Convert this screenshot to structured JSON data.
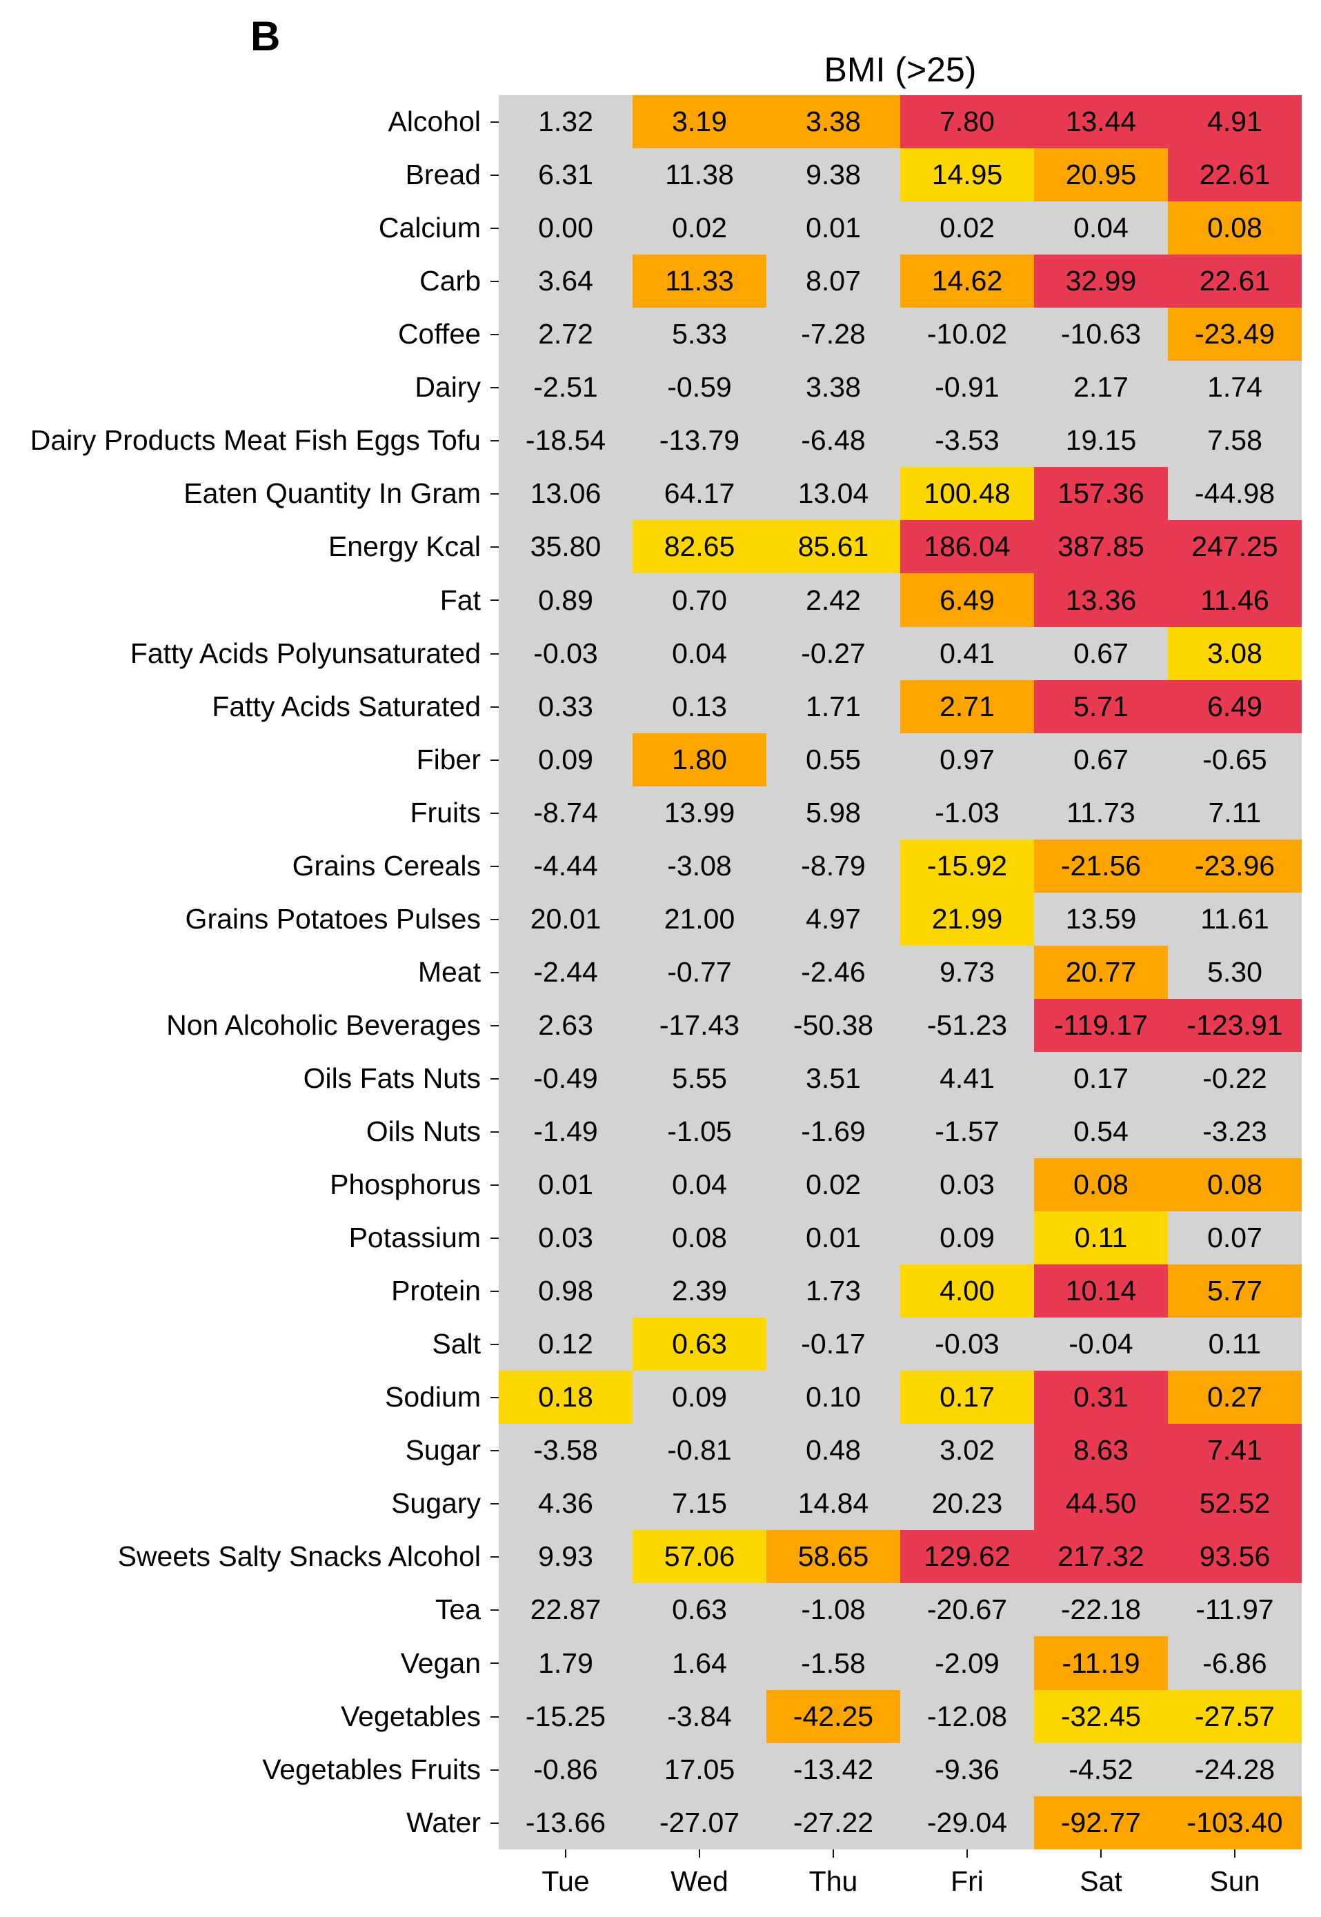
{
  "chart_data": {
    "type": "heatmap",
    "panel_label": "B",
    "title": "BMI (>25)",
    "xlabel": "",
    "ylabel": "",
    "columns": [
      "Tue",
      "Wed",
      "Thu",
      "Fri",
      "Sat",
      "Sun"
    ],
    "level_colors": [
      "#d3d3d3",
      "#ffd700",
      "#ffa500",
      "#e83a50"
    ],
    "rows": [
      {
        "label": "Alcohol",
        "values": [
          1.32,
          3.19,
          3.38,
          7.8,
          13.44,
          4.91
        ],
        "levels": [
          0,
          2,
          2,
          3,
          3,
          3
        ]
      },
      {
        "label": "Bread",
        "values": [
          6.31,
          11.38,
          9.38,
          14.95,
          20.95,
          22.61
        ],
        "levels": [
          0,
          0,
          0,
          1,
          2,
          3
        ]
      },
      {
        "label": "Calcium",
        "values": [
          0.0,
          0.02,
          0.01,
          0.02,
          0.04,
          0.08
        ],
        "levels": [
          0,
          0,
          0,
          0,
          0,
          2
        ]
      },
      {
        "label": "Carb",
        "values": [
          3.64,
          11.33,
          8.07,
          14.62,
          32.99,
          22.61
        ],
        "levels": [
          0,
          2,
          0,
          2,
          3,
          3
        ]
      },
      {
        "label": "Coffee",
        "values": [
          2.72,
          5.33,
          -7.28,
          -10.02,
          -10.63,
          -23.49
        ],
        "levels": [
          0,
          0,
          0,
          0,
          0,
          2
        ]
      },
      {
        "label": "Dairy",
        "values": [
          -2.51,
          -0.59,
          3.38,
          -0.91,
          2.17,
          1.74
        ],
        "levels": [
          0,
          0,
          0,
          0,
          0,
          0
        ]
      },
      {
        "label": "Dairy Products Meat Fish Eggs Tofu",
        "values": [
          -18.54,
          -13.79,
          -6.48,
          -3.53,
          19.15,
          7.58
        ],
        "levels": [
          0,
          0,
          0,
          0,
          0,
          0
        ]
      },
      {
        "label": "Eaten Quantity In Gram",
        "values": [
          13.06,
          64.17,
          13.04,
          100.48,
          157.36,
          -44.98
        ],
        "levels": [
          0,
          0,
          0,
          1,
          3,
          0
        ]
      },
      {
        "label": "Energy Kcal",
        "values": [
          35.8,
          82.65,
          85.61,
          186.04,
          387.85,
          247.25
        ],
        "levels": [
          0,
          1,
          1,
          3,
          3,
          3
        ]
      },
      {
        "label": "Fat",
        "values": [
          0.89,
          0.7,
          2.42,
          6.49,
          13.36,
          11.46
        ],
        "levels": [
          0,
          0,
          0,
          2,
          3,
          3
        ]
      },
      {
        "label": "Fatty Acids Polyunsaturated",
        "values": [
          -0.03,
          0.04,
          -0.27,
          0.41,
          0.67,
          3.08
        ],
        "levels": [
          0,
          0,
          0,
          0,
          0,
          1
        ]
      },
      {
        "label": "Fatty Acids Saturated",
        "values": [
          0.33,
          0.13,
          1.71,
          2.71,
          5.71,
          6.49
        ],
        "levels": [
          0,
          0,
          0,
          2,
          3,
          3
        ]
      },
      {
        "label": "Fiber",
        "values": [
          0.09,
          1.8,
          0.55,
          0.97,
          0.67,
          -0.65
        ],
        "levels": [
          0,
          2,
          0,
          0,
          0,
          0
        ]
      },
      {
        "label": "Fruits",
        "values": [
          -8.74,
          13.99,
          5.98,
          -1.03,
          11.73,
          7.11
        ],
        "levels": [
          0,
          0,
          0,
          0,
          0,
          0
        ]
      },
      {
        "label": "Grains Cereals",
        "values": [
          -4.44,
          -3.08,
          -8.79,
          -15.92,
          -21.56,
          -23.96
        ],
        "levels": [
          0,
          0,
          0,
          1,
          2,
          2
        ]
      },
      {
        "label": "Grains Potatoes Pulses",
        "values": [
          20.01,
          21.0,
          4.97,
          21.99,
          13.59,
          11.61
        ],
        "levels": [
          0,
          0,
          0,
          1,
          0,
          0
        ]
      },
      {
        "label": "Meat",
        "values": [
          -2.44,
          -0.77,
          -2.46,
          9.73,
          20.77,
          5.3
        ],
        "levels": [
          0,
          0,
          0,
          0,
          2,
          0
        ]
      },
      {
        "label": "Non Alcoholic Beverages",
        "values": [
          2.63,
          -17.43,
          -50.38,
          -51.23,
          -119.17,
          -123.91
        ],
        "levels": [
          0,
          0,
          0,
          0,
          3,
          3
        ]
      },
      {
        "label": "Oils Fats Nuts",
        "values": [
          -0.49,
          5.55,
          3.51,
          4.41,
          0.17,
          -0.22
        ],
        "levels": [
          0,
          0,
          0,
          0,
          0,
          0
        ]
      },
      {
        "label": "Oils Nuts",
        "values": [
          -1.49,
          -1.05,
          -1.69,
          -1.57,
          0.54,
          -3.23
        ],
        "levels": [
          0,
          0,
          0,
          0,
          0,
          0
        ]
      },
      {
        "label": "Phosphorus",
        "values": [
          0.01,
          0.04,
          0.02,
          0.03,
          0.08,
          0.08
        ],
        "levels": [
          0,
          0,
          0,
          0,
          2,
          2
        ]
      },
      {
        "label": "Potassium",
        "values": [
          0.03,
          0.08,
          0.01,
          0.09,
          0.11,
          0.07
        ],
        "levels": [
          0,
          0,
          0,
          0,
          1,
          0
        ]
      },
      {
        "label": "Protein",
        "values": [
          0.98,
          2.39,
          1.73,
          4.0,
          10.14,
          5.77
        ],
        "levels": [
          0,
          0,
          0,
          1,
          3,
          2
        ]
      },
      {
        "label": "Salt",
        "values": [
          0.12,
          0.63,
          -0.17,
          -0.03,
          -0.04,
          0.11
        ],
        "levels": [
          0,
          1,
          0,
          0,
          0,
          0
        ]
      },
      {
        "label": "Sodium",
        "values": [
          0.18,
          0.09,
          0.1,
          0.17,
          0.31,
          0.27
        ],
        "levels": [
          1,
          0,
          0,
          1,
          3,
          2
        ]
      },
      {
        "label": "Sugar",
        "values": [
          -3.58,
          -0.81,
          0.48,
          3.02,
          8.63,
          7.41
        ],
        "levels": [
          0,
          0,
          0,
          0,
          3,
          3
        ]
      },
      {
        "label": "Sugary",
        "values": [
          4.36,
          7.15,
          14.84,
          20.23,
          44.5,
          52.52
        ],
        "levels": [
          0,
          0,
          0,
          0,
          3,
          3
        ]
      },
      {
        "label": "Sweets Salty Snacks Alcohol",
        "values": [
          9.93,
          57.06,
          58.65,
          129.62,
          217.32,
          93.56
        ],
        "levels": [
          0,
          1,
          2,
          3,
          3,
          3
        ]
      },
      {
        "label": "Tea",
        "values": [
          22.87,
          0.63,
          -1.08,
          -20.67,
          -22.18,
          -11.97
        ],
        "levels": [
          0,
          0,
          0,
          0,
          0,
          0
        ]
      },
      {
        "label": "Vegan",
        "values": [
          1.79,
          1.64,
          -1.58,
          -2.09,
          -11.19,
          -6.86
        ],
        "levels": [
          0,
          0,
          0,
          0,
          2,
          0
        ]
      },
      {
        "label": "Vegetables",
        "values": [
          -15.25,
          -3.84,
          -42.25,
          -12.08,
          -32.45,
          -27.57
        ],
        "levels": [
          0,
          0,
          2,
          0,
          1,
          1
        ]
      },
      {
        "label": "Vegetables Fruits",
        "values": [
          -0.86,
          17.05,
          -13.42,
          -9.36,
          -4.52,
          -24.28
        ],
        "levels": [
          0,
          0,
          0,
          0,
          0,
          0
        ]
      },
      {
        "label": "Water",
        "values": [
          -13.66,
          -27.07,
          -27.22,
          -29.04,
          -92.77,
          -103.4
        ],
        "levels": [
          0,
          0,
          0,
          0,
          2,
          2
        ]
      }
    ]
  }
}
